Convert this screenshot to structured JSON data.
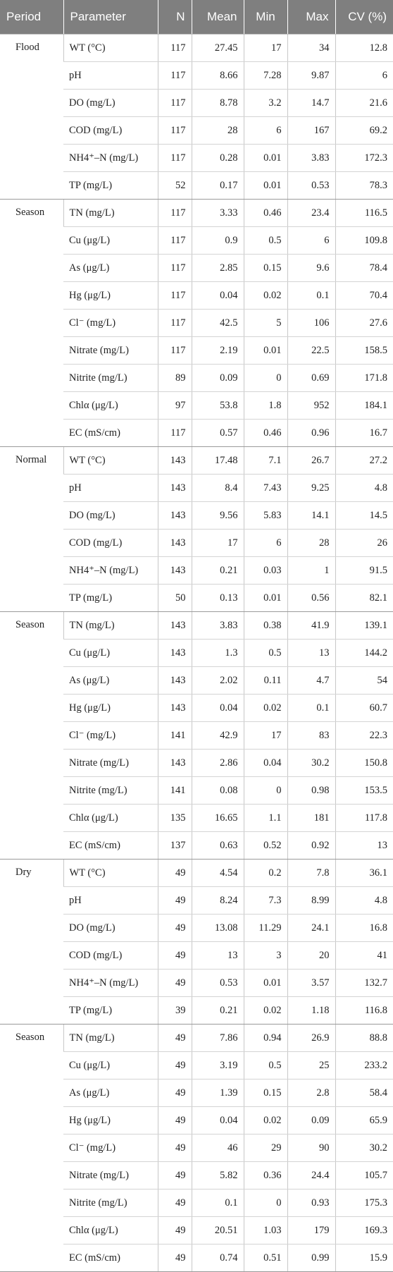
{
  "columns": [
    "Period",
    "Parameter",
    "N",
    "Mean",
    "Min",
    "Max",
    "CV (%)"
  ],
  "groups": [
    {
      "period": "Flood",
      "rows": [
        [
          "WT (°C)",
          "117",
          "27.45",
          "17",
          "34",
          "12.8"
        ],
        [
          "pH",
          "117",
          "8.66",
          "7.28",
          "9.87",
          "6"
        ],
        [
          "DO (mg/L)",
          "117",
          "8.78",
          "3.2",
          "14.7",
          "21.6"
        ],
        [
          "COD (mg/L)",
          "117",
          "28",
          "6",
          "167",
          "69.2"
        ],
        [
          "NH4⁺–N (mg/L)",
          "117",
          "0.28",
          "0.01",
          "3.83",
          "172.3"
        ],
        [
          "TP (mg/L)",
          "52",
          "0.17",
          "0.01",
          "0.53",
          "78.3"
        ]
      ]
    },
    {
      "period": "Season",
      "rows": [
        [
          "TN (mg/L)",
          "117",
          "3.33",
          "0.46",
          "23.4",
          "116.5"
        ],
        [
          "Cu (μg/L)",
          "117",
          "0.9",
          "0.5",
          "6",
          "109.8"
        ],
        [
          "As (μg/L)",
          "117",
          "2.85",
          "0.15",
          "9.6",
          "78.4"
        ],
        [
          "Hg (μg/L)",
          "117",
          "0.04",
          "0.02",
          "0.1",
          "70.4"
        ],
        [
          "Cl⁻ (mg/L)",
          "117",
          "42.5",
          "5",
          "106",
          "27.6"
        ],
        [
          "Nitrate (mg/L)",
          "117",
          "2.19",
          "0.01",
          "22.5",
          "158.5"
        ],
        [
          "Nitrite (mg/L)",
          "89",
          "0.09",
          "0",
          "0.69",
          "171.8"
        ],
        [
          "Chlα (μg/L)",
          "97",
          "53.8",
          "1.8",
          "952",
          "184.1"
        ],
        [
          "EC (mS/cm)",
          "117",
          "0.57",
          "0.46",
          "0.96",
          "16.7"
        ]
      ]
    },
    {
      "period": "Normal",
      "rows": [
        [
          "WT (°C)",
          "143",
          "17.48",
          "7.1",
          "26.7",
          "27.2"
        ],
        [
          "pH",
          "143",
          "8.4",
          "7.43",
          "9.25",
          "4.8"
        ],
        [
          "DO (mg/L)",
          "143",
          "9.56",
          "5.83",
          "14.1",
          "14.5"
        ],
        [
          "COD (mg/L)",
          "143",
          "17",
          "6",
          "28",
          "26"
        ],
        [
          "NH4⁺–N (mg/L)",
          "143",
          "0.21",
          "0.03",
          "1",
          "91.5"
        ],
        [
          "TP (mg/L)",
          "50",
          "0.13",
          "0.01",
          "0.56",
          "82.1"
        ]
      ]
    },
    {
      "period": "Season",
      "rows": [
        [
          "TN (mg/L)",
          "143",
          "3.83",
          "0.38",
          "41.9",
          "139.1"
        ],
        [
          "Cu (μg/L)",
          "143",
          "1.3",
          "0.5",
          "13",
          "144.2"
        ],
        [
          "As (μg/L)",
          "143",
          "2.02",
          "0.11",
          "4.7",
          "54"
        ],
        [
          "Hg (μg/L)",
          "143",
          "0.04",
          "0.02",
          "0.1",
          "60.7"
        ],
        [
          "Cl⁻ (mg/L)",
          "141",
          "42.9",
          "17",
          "83",
          "22.3"
        ],
        [
          "Nitrate (mg/L)",
          "143",
          "2.86",
          "0.04",
          "30.2",
          "150.8"
        ],
        [
          "Nitrite (mg/L)",
          "141",
          "0.08",
          "0",
          "0.98",
          "153.5"
        ],
        [
          "Chlα (μg/L)",
          "135",
          "16.65",
          "1.1",
          "181",
          "117.8"
        ],
        [
          "EC (mS/cm)",
          "137",
          "0.63",
          "0.52",
          "0.92",
          "13"
        ]
      ]
    },
    {
      "period": "Dry",
      "rows": [
        [
          "WT (°C)",
          "49",
          "4.54",
          "0.2",
          "7.8",
          "36.1"
        ],
        [
          "pH",
          "49",
          "8.24",
          "7.3",
          "8.99",
          "4.8"
        ],
        [
          "DO (mg/L)",
          "49",
          "13.08",
          "11.29",
          "24.1",
          "16.8"
        ],
        [
          "COD (mg/L)",
          "49",
          "13",
          "3",
          "20",
          "41"
        ],
        [
          "NH4⁺–N (mg/L)",
          "49",
          "0.53",
          "0.01",
          "3.57",
          "132.7"
        ],
        [
          "TP (mg/L)",
          "39",
          "0.21",
          "0.02",
          "1.18",
          "116.8"
        ]
      ]
    },
    {
      "period": "Season",
      "rows": [
        [
          "TN (mg/L)",
          "49",
          "7.86",
          "0.94",
          "26.9",
          "88.8"
        ],
        [
          "Cu (μg/L)",
          "49",
          "3.19",
          "0.5",
          "25",
          "233.2"
        ],
        [
          "As (μg/L)",
          "49",
          "1.39",
          "0.15",
          "2.8",
          "58.4"
        ],
        [
          "Hg (μg/L)",
          "49",
          "0.04",
          "0.02",
          "0.09",
          "65.9"
        ],
        [
          "Cl⁻ (mg/L)",
          "49",
          "46",
          "29",
          "90",
          "30.2"
        ],
        [
          "Nitrate (mg/L)",
          "49",
          "5.82",
          "0.36",
          "24.4",
          "105.7"
        ],
        [
          "Nitrite (mg/L)",
          "49",
          "0.1",
          "0",
          "0.93",
          "175.3"
        ],
        [
          "Chlα (μg/L)",
          "49",
          "20.51",
          "1.03",
          "179",
          "169.3"
        ],
        [
          "EC (mS/cm)",
          "49",
          "0.74",
          "0.51",
          "0.99",
          "15.9"
        ]
      ]
    }
  ]
}
